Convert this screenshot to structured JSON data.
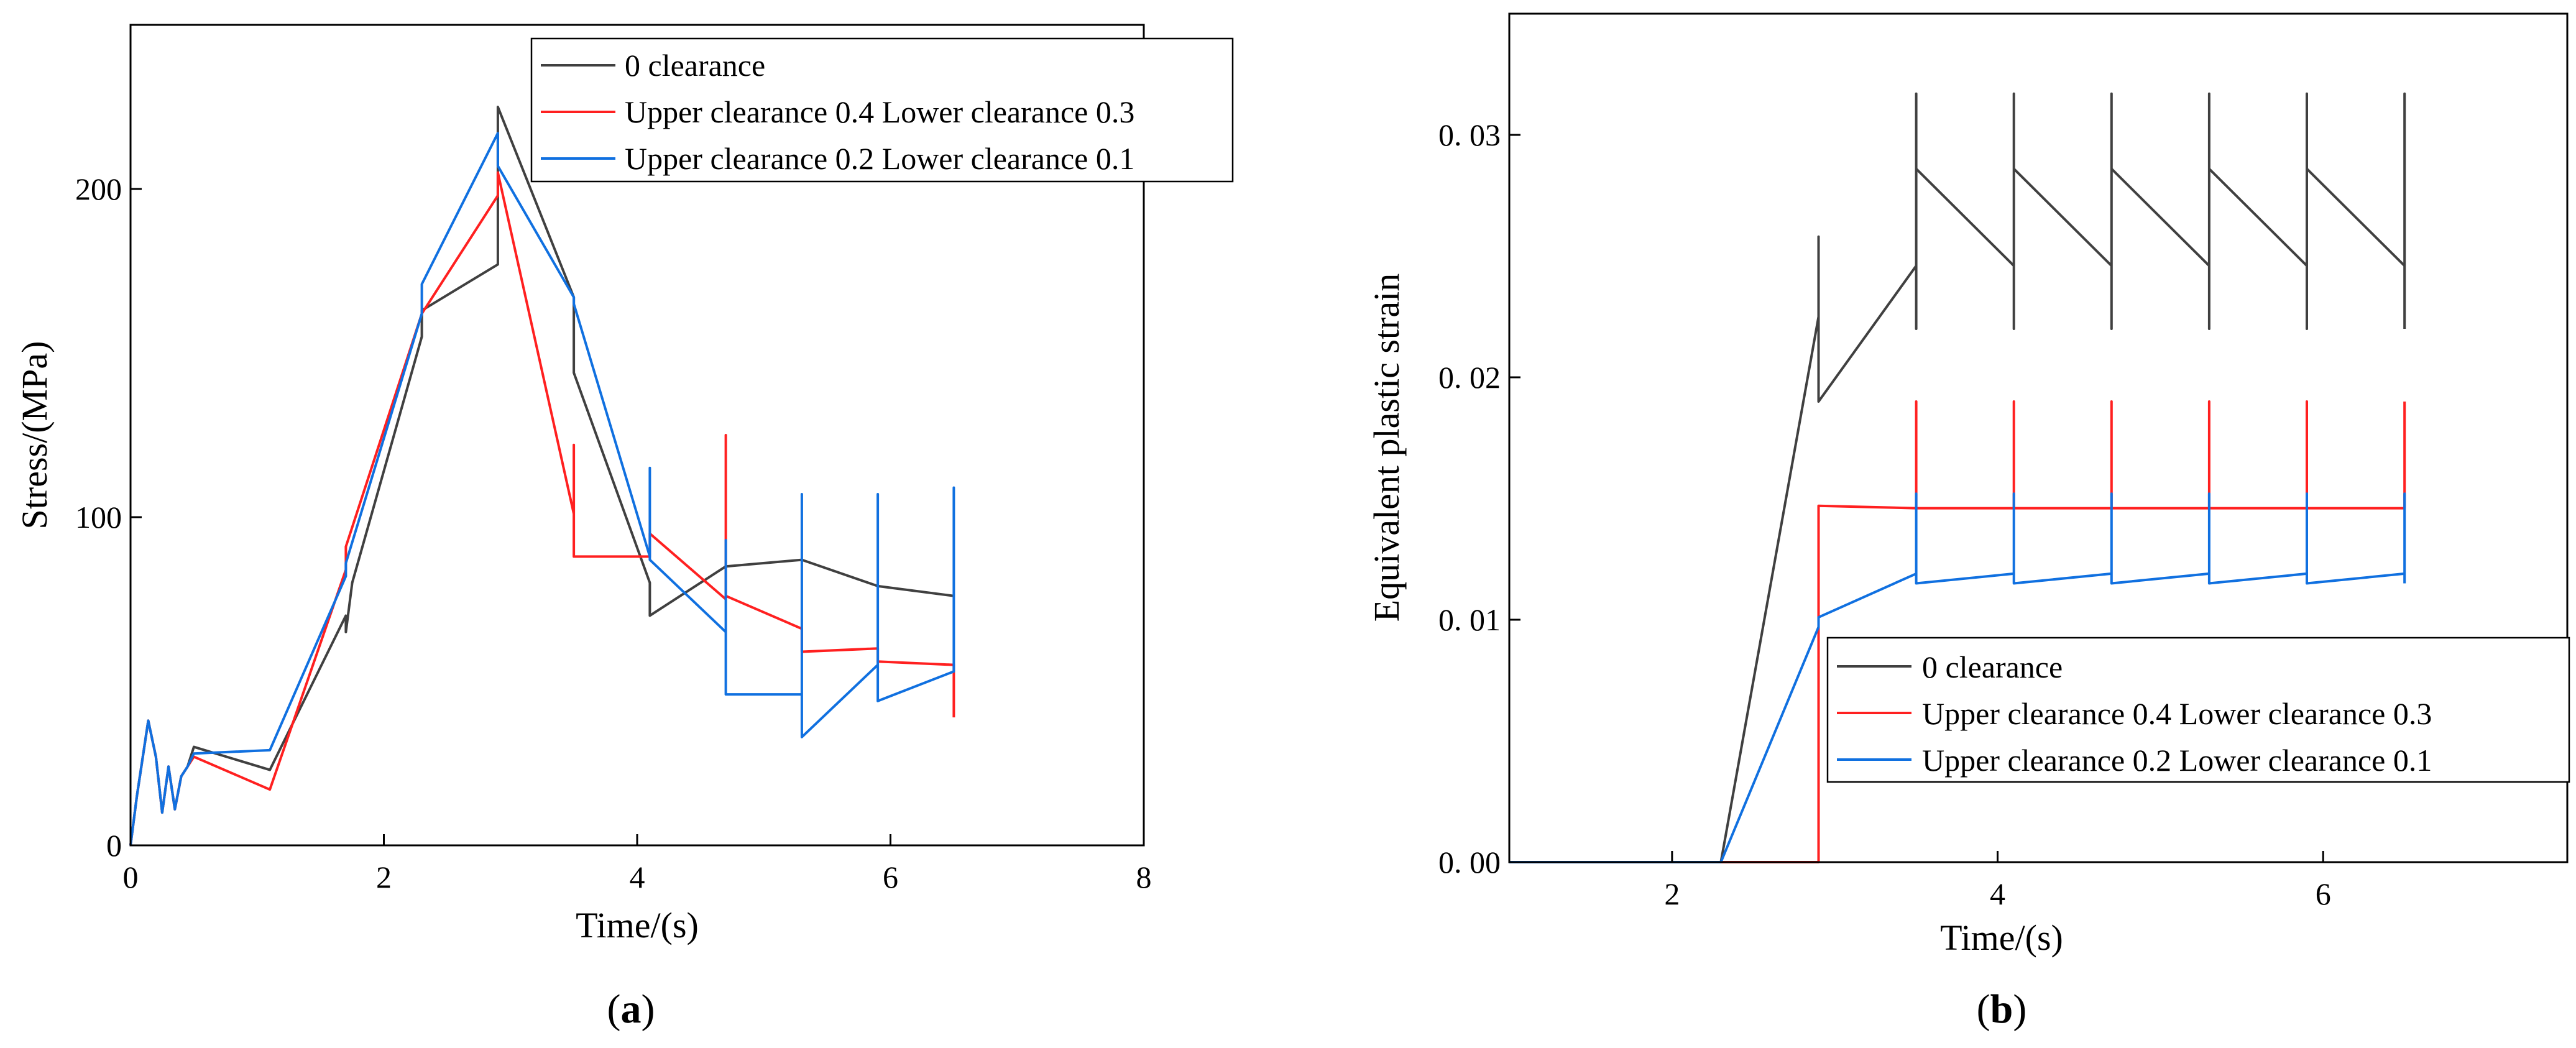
{
  "figure": {
    "panels": [
      "a",
      "b"
    ]
  },
  "chart_data": [
    {
      "id": "a",
      "type": "line",
      "panel_label": "(a)",
      "xlabel": "Time/(s)",
      "ylabel": "Stress/(MPa)",
      "xlim": [
        0,
        8
      ],
      "ylim": [
        0,
        250
      ],
      "xticks": [
        0,
        2,
        4,
        6,
        8
      ],
      "yticks": [
        0,
        100,
        200
      ],
      "xtick_labels": [
        "0",
        "2",
        "4",
        "6",
        "8"
      ],
      "ytick_labels": [
        "0",
        "100",
        "200"
      ],
      "legend_position": "top-right",
      "series": [
        {
          "name": "0 clearance",
          "color": "#404040",
          "x": [
            0,
            0.05,
            0.14,
            0.2,
            0.25,
            0.3,
            0.35,
            0.4,
            0.45,
            0.5,
            1.1,
            1.7,
            1.7,
            1.75,
            2.3,
            2.3,
            2.9,
            2.9,
            3.5,
            3.5,
            4.1,
            4.1,
            4.7,
            5.3,
            5.9,
            6.5
          ],
          "y": [
            0,
            15,
            38,
            27,
            10,
            24,
            11,
            21,
            24,
            30,
            23,
            70,
            65,
            80,
            155,
            163,
            177,
            225,
            167,
            144,
            80,
            70,
            85,
            87,
            79,
            76
          ]
        },
        {
          "name": "Upper clearance 0.4 Lower clearance 0.3",
          "color": "#ff2020",
          "x": [
            0,
            0.05,
            0.14,
            0.2,
            0.25,
            0.3,
            0.35,
            0.4,
            0.45,
            0.5,
            1.1,
            1.7,
            1.7,
            2.3,
            2.9,
            2.9,
            3.5,
            3.5,
            3.5,
            4.1,
            4.1,
            4.7,
            4.7,
            4.7,
            5.3,
            5.3,
            5.9,
            5.9,
            6.5,
            6.5
          ],
          "y": [
            0,
            15,
            38,
            27,
            10,
            24,
            11,
            21,
            24,
            27,
            17,
            84,
            91,
            162,
            198,
            205,
            101,
            122,
            88,
            88,
            95,
            75,
            125,
            76,
            66,
            59,
            60,
            56,
            55,
            39
          ]
        },
        {
          "name": "Upper clearance 0.2 Lower clearance 0.1",
          "color": "#1070e0",
          "x": [
            0,
            0.05,
            0.14,
            0.2,
            0.25,
            0.3,
            0.35,
            0.4,
            0.45,
            0.5,
            1.1,
            1.7,
            1.7,
            2.3,
            2.3,
            2.9,
            2.9,
            3.5,
            3.5,
            4.1,
            4.1,
            4.1,
            4.7,
            4.7,
            4.7,
            5.3,
            5.3,
            5.3,
            5.9,
            5.9,
            5.9,
            6.5,
            6.5,
            6.5
          ],
          "y": [
            0,
            15,
            38,
            27,
            10,
            24,
            11,
            21,
            24,
            28,
            29,
            82,
            86,
            162,
            171,
            217,
            207,
            167,
            165,
            88,
            115,
            87,
            65,
            93,
            46,
            46,
            107,
            33,
            55,
            107,
            44,
            53,
            109,
            53
          ]
        }
      ]
    },
    {
      "id": "b",
      "type": "line",
      "panel_label": "(b)",
      "xlabel": "Time/(s)",
      "ylabel": "Equivalent plastic strain",
      "xlim": [
        1,
        7.5
      ],
      "ylim": [
        0,
        0.035
      ],
      "xticks": [
        2,
        4,
        6
      ],
      "yticks": [
        0,
        0.01,
        0.02,
        0.03
      ],
      "xtick_labels": [
        "2",
        "4",
        "6"
      ],
      "ytick_labels": [
        "0. 00",
        "0. 01",
        "0. 02",
        "0. 03"
      ],
      "legend_position": "bottom-right",
      "series": [
        {
          "name": "0 clearance",
          "color": "#404040",
          "x": [
            1,
            2.3,
            2.9,
            2.9,
            2.9,
            3.5,
            3.5,
            3.5,
            3.5,
            4.1,
            4.1,
            4.1,
            4.1,
            4.7,
            4.7,
            4.7,
            4.7,
            5.3,
            5.3,
            5.3,
            5.3,
            5.9,
            5.9,
            5.9,
            5.9,
            6.5,
            6.5,
            6.5
          ],
          "y": [
            0,
            0,
            0.0225,
            0.0258,
            0.019,
            0.0246,
            0.0317,
            0.022,
            0.0286,
            0.0246,
            0.0317,
            0.022,
            0.0286,
            0.0246,
            0.0317,
            0.022,
            0.0286,
            0.0246,
            0.0317,
            0.022,
            0.0286,
            0.0246,
            0.0317,
            0.022,
            0.0286,
            0.0246,
            0.0317,
            0.022
          ]
        },
        {
          "name": "Upper clearance 0.4 Lower clearance 0.3",
          "color": "#ff2020",
          "x": [
            1,
            2.9,
            2.9,
            3.5,
            3.5,
            3.5,
            4.1,
            4.1,
            4.1,
            4.7,
            4.7,
            4.7,
            5.3,
            5.3,
            5.3,
            5.9,
            5.9,
            5.9,
            6.5,
            6.5
          ],
          "y": [
            0,
            0,
            0.0147,
            0.0146,
            0.019,
            0.0146,
            0.0146,
            0.019,
            0.0146,
            0.0146,
            0.019,
            0.0146,
            0.0146,
            0.019,
            0.0146,
            0.0146,
            0.019,
            0.0146,
            0.0146,
            0.019
          ]
        },
        {
          "name": "Upper clearance 0.2 Lower clearance 0.1",
          "color": "#1070e0",
          "x": [
            1,
            2.3,
            2.9,
            2.9,
            3.5,
            3.5,
            3.5,
            4.1,
            4.1,
            4.1,
            4.7,
            4.7,
            4.7,
            5.3,
            5.3,
            5.3,
            5.9,
            5.9,
            5.9,
            6.5,
            6.5,
            6.5
          ],
          "y": [
            0,
            0,
            0.0097,
            0.0101,
            0.0119,
            0.0152,
            0.0115,
            0.0119,
            0.0152,
            0.0115,
            0.0119,
            0.0152,
            0.0115,
            0.0119,
            0.0152,
            0.0115,
            0.0119,
            0.0152,
            0.0115,
            0.0119,
            0.0152,
            0.0115
          ]
        }
      ]
    }
  ]
}
